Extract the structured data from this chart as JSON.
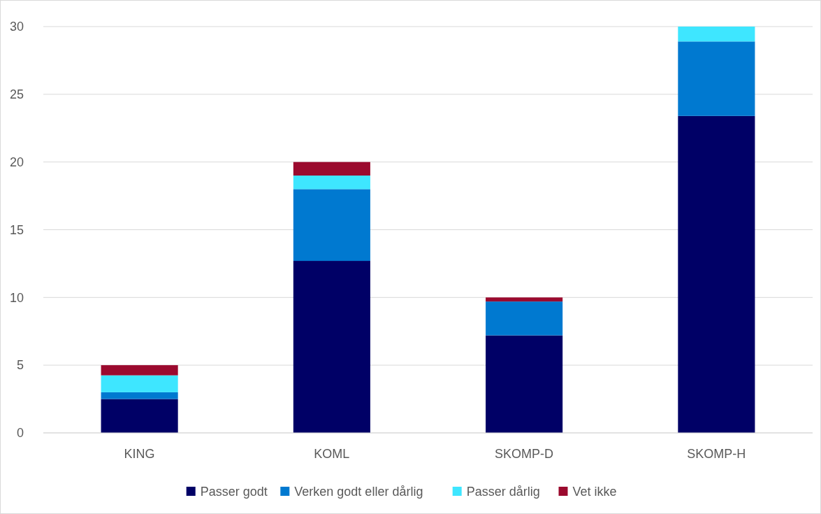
{
  "chart_data": {
    "type": "bar",
    "stacked": true,
    "categories": [
      "KING",
      "KOML",
      "SKOMP-D",
      "SKOMP-H"
    ],
    "series": [
      {
        "name": "Passer godt",
        "color": "#000066",
        "values": [
          2.5,
          12.7,
          7.2,
          23.4
        ]
      },
      {
        "name": "Verken godt eller dårlig",
        "color": "#0079d0",
        "values": [
          0.5,
          5.3,
          2.5,
          5.5
        ]
      },
      {
        "name": "Passer dårlig",
        "color": "#3ee6ff",
        "values": [
          1.25,
          1,
          0,
          1.1
        ]
      },
      {
        "name": "Vet ikke",
        "color": "#9b0a2e",
        "values": [
          0.75,
          1,
          0.3,
          0
        ]
      }
    ],
    "ylim": [
      0,
      30
    ],
    "yticks": [
      0,
      5,
      10,
      15,
      20,
      25,
      30
    ],
    "grid": "y",
    "legend": "bottom"
  }
}
